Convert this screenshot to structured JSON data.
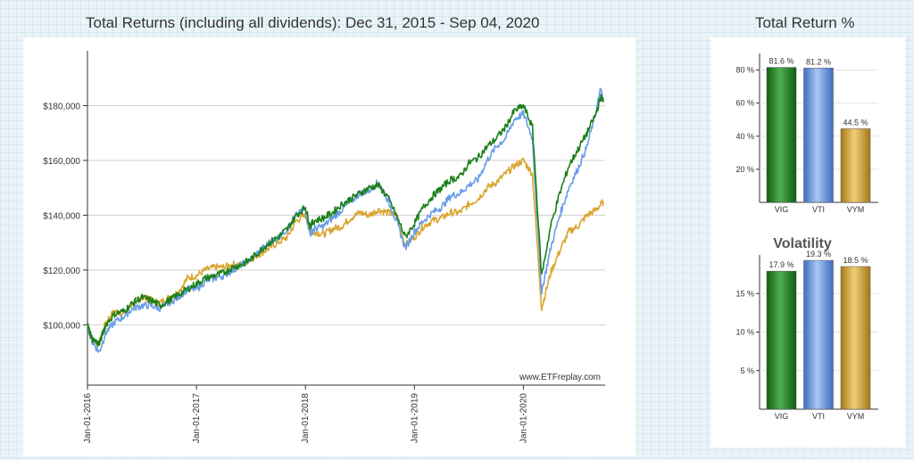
{
  "main_title": "Total Returns (including all dividends): Dec 31, 2015 - Sep 04, 2020",
  "bar_title": "Total Return %",
  "colors": {
    "VIG": "#1a7f1a",
    "VTI": "#6a9de8",
    "VYM": "#d9a52f"
  },
  "chart_data": [
    {
      "type": "line",
      "title": "Total Returns (including all dividends): Dec 31, 2015 - Sep 04, 2020",
      "ylim": [
        78000,
        200000
      ],
      "y_ticks": [
        {
          "value": 100000,
          "label": "$100,000"
        },
        {
          "value": 120000,
          "label": "$120,000"
        },
        {
          "value": 140000,
          "label": "$140,000"
        },
        {
          "value": 160000,
          "label": "$160,000"
        },
        {
          "value": 180000,
          "label": "$180,000"
        }
      ],
      "x_ticks": [
        {
          "value": 0,
          "label": "Jan-01-2016"
        },
        {
          "value": 12,
          "label": "Jan-01-2017"
        },
        {
          "value": 24,
          "label": "Jan-01-2018"
        },
        {
          "value": 36,
          "label": "Jan-01-2019"
        },
        {
          "value": 48,
          "label": "Jan-01-2020"
        }
      ],
      "watermark": "www.ETFreplay.com",
      "series": [
        {
          "name": "VYM",
          "points": [
            [
              0,
              100000
            ],
            [
              0.5,
              95000
            ],
            [
              1.3,
              93000
            ],
            [
              2,
              101000
            ],
            [
              3,
              105000
            ],
            [
              4,
              104000
            ],
            [
              5,
              108000
            ],
            [
              6,
              110000
            ],
            [
              7,
              109000
            ],
            [
              8,
              108000
            ],
            [
              9,
              110000
            ],
            [
              10,
              112000
            ],
            [
              11,
              117000
            ],
            [
              12,
              118000
            ],
            [
              13,
              120000
            ],
            [
              14,
              121000
            ],
            [
              15,
              121000
            ],
            [
              16,
              122000
            ],
            [
              17,
              122000
            ],
            [
              18,
              124000
            ],
            [
              19,
              126000
            ],
            [
              20,
              128000
            ],
            [
              21,
              130000
            ],
            [
              22,
              132000
            ],
            [
              23,
              138000
            ],
            [
              24,
              140000
            ],
            [
              24.5,
              135000
            ],
            [
              25,
              134000
            ],
            [
              26,
              133000
            ],
            [
              27,
              135000
            ],
            [
              28,
              136000
            ],
            [
              29,
              139000
            ],
            [
              30,
              141000
            ],
            [
              31,
              140000
            ],
            [
              32,
              142000
            ],
            [
              33,
              141000
            ],
            [
              34,
              140000
            ],
            [
              35,
              129000
            ],
            [
              36,
              132000
            ],
            [
              37,
              136000
            ],
            [
              38,
              138000
            ],
            [
              39,
              139000
            ],
            [
              40,
              141000
            ],
            [
              41,
              141000
            ],
            [
              42,
              144000
            ],
            [
              43,
              146000
            ],
            [
              44,
              150000
            ],
            [
              45,
              152000
            ],
            [
              46,
              155000
            ],
            [
              47,
              158000
            ],
            [
              48,
              160000
            ],
            [
              49,
              155000
            ],
            [
              50,
              106000
            ],
            [
              51,
              119000
            ],
            [
              52,
              127000
            ],
            [
              53,
              134000
            ],
            [
              54,
              136000
            ],
            [
              55,
              140000
            ],
            [
              56,
              142000
            ],
            [
              56.8,
              145000
            ]
          ]
        },
        {
          "name": "VTI",
          "points": [
            [
              0,
              100000
            ],
            [
              0.5,
              94000
            ],
            [
              1.3,
              90000
            ],
            [
              2,
              97000
            ],
            [
              3,
              101000
            ],
            [
              4,
              103000
            ],
            [
              5,
              106000
            ],
            [
              6,
              107000
            ],
            [
              7,
              107000
            ],
            [
              8,
              106000
            ],
            [
              9,
              108000
            ],
            [
              10,
              110000
            ],
            [
              11,
              113000
            ],
            [
              12,
              113000
            ],
            [
              13,
              116000
            ],
            [
              14,
              117000
            ],
            [
              15,
              118000
            ],
            [
              16,
              120000
            ],
            [
              17,
              122000
            ],
            [
              18,
              124000
            ],
            [
              19,
              127000
            ],
            [
              20,
              130000
            ],
            [
              21,
              132000
            ],
            [
              22,
              135000
            ],
            [
              23,
              140000
            ],
            [
              24,
              142000
            ],
            [
              24.5,
              133000
            ],
            [
              25,
              135000
            ],
            [
              26,
              136000
            ],
            [
              27,
              139000
            ],
            [
              28,
              142000
            ],
            [
              29,
              145000
            ],
            [
              30,
              148000
            ],
            [
              31,
              149000
            ],
            [
              32,
              152000
            ],
            [
              33,
              146000
            ],
            [
              34,
              138000
            ],
            [
              35,
              128000
            ],
            [
              36,
              134000
            ],
            [
              37,
              138000
            ],
            [
              38,
              141000
            ],
            [
              39,
              143000
            ],
            [
              40,
              147000
            ],
            [
              41,
              148000
            ],
            [
              42,
              151000
            ],
            [
              43,
              153000
            ],
            [
              44,
              160000
            ],
            [
              45,
              165000
            ],
            [
              46,
              168000
            ],
            [
              47,
              175000
            ],
            [
              48,
              177000
            ],
            [
              49,
              168000
            ],
            [
              50,
              112000
            ],
            [
              51,
              128000
            ],
            [
              52,
              140000
            ],
            [
              53,
              150000
            ],
            [
              54,
              157000
            ],
            [
              55,
              165000
            ],
            [
              56,
              178000
            ],
            [
              56.5,
              186000
            ],
            [
              56.8,
              182000
            ]
          ]
        },
        {
          "name": "VIG",
          "points": [
            [
              0,
              100000
            ],
            [
              0.5,
              95000
            ],
            [
              1.3,
              93000
            ],
            [
              2,
              100000
            ],
            [
              3,
              104000
            ],
            [
              4,
              105000
            ],
            [
              5,
              108000
            ],
            [
              6,
              110000
            ],
            [
              7,
              109000
            ],
            [
              8,
              107000
            ],
            [
              9,
              109000
            ],
            [
              10,
              111000
            ],
            [
              11,
              113000
            ],
            [
              12,
              115000
            ],
            [
              13,
              117000
            ],
            [
              14,
              118000
            ],
            [
              15,
              119000
            ],
            [
              16,
              121000
            ],
            [
              17,
              122000
            ],
            [
              18,
              124000
            ],
            [
              19,
              127000
            ],
            [
              20,
              130000
            ],
            [
              21,
              132000
            ],
            [
              22,
              135000
            ],
            [
              23,
              140000
            ],
            [
              24,
              143000
            ],
            [
              24.5,
              136000
            ],
            [
              25,
              138000
            ],
            [
              26,
              139000
            ],
            [
              27,
              141000
            ],
            [
              28,
              144000
            ],
            [
              29,
              146000
            ],
            [
              30,
              148000
            ],
            [
              31,
              150000
            ],
            [
              32,
              151000
            ],
            [
              33,
              147000
            ],
            [
              34,
              140000
            ],
            [
              35,
              132000
            ],
            [
              36,
              137000
            ],
            [
              37,
              143000
            ],
            [
              38,
              147000
            ],
            [
              39,
              150000
            ],
            [
              40,
              153000
            ],
            [
              41,
              154000
            ],
            [
              42,
              159000
            ],
            [
              43,
              161000
            ],
            [
              44,
              165000
            ],
            [
              45,
              168000
            ],
            [
              46,
              172000
            ],
            [
              47,
              178000
            ],
            [
              48,
              180000
            ],
            [
              49,
              172000
            ],
            [
              50,
              118000
            ],
            [
              51,
              136000
            ],
            [
              52,
              148000
            ],
            [
              53,
              158000
            ],
            [
              54,
              164000
            ],
            [
              55,
              170000
            ],
            [
              56,
              177000
            ],
            [
              56.5,
              183000
            ],
            [
              56.8,
              182000
            ]
          ]
        }
      ]
    },
    {
      "type": "bar",
      "title": "Total Return %",
      "categories": [
        "VIG",
        "VTI",
        "VYM"
      ],
      "values": [
        81.6,
        81.2,
        44.5
      ],
      "value_labels": [
        "81.6 %",
        "81.2 %",
        "44.5 %"
      ],
      "ylim": [
        0,
        90
      ],
      "y_ticks": [
        {
          "value": 20,
          "label": "20 %"
        },
        {
          "value": 40,
          "label": "40 %"
        },
        {
          "value": 60,
          "label": "60 %"
        },
        {
          "value": 80,
          "label": "80 %"
        }
      ]
    },
    {
      "type": "bar",
      "title": "Volatility",
      "categories": [
        "VIG",
        "VTI",
        "VYM"
      ],
      "values": [
        17.9,
        19.3,
        18.5
      ],
      "value_labels": [
        "17.9 %",
        "19.3 %",
        "18.5 %"
      ],
      "ylim": [
        0,
        20
      ],
      "y_ticks": [
        {
          "value": 5,
          "label": "5 %"
        },
        {
          "value": 10,
          "label": "10 %"
        },
        {
          "value": 15,
          "label": "15 %"
        }
      ]
    }
  ]
}
